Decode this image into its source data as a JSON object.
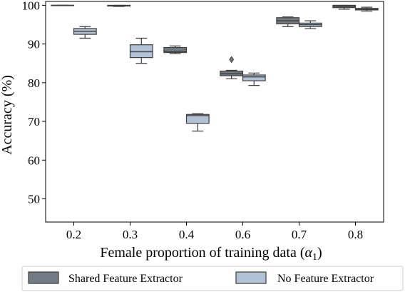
{
  "chart_data": {
    "type": "box",
    "xlabel": "Female proportion of training data (",
    "xlabel_symbol": "α",
    "xlabel_subscript": "1",
    "xlabel_close": ")",
    "ylabel": "Accuracy (%)",
    "categories": [
      "0.2",
      "0.3",
      "0.4",
      "0.6",
      "0.7",
      "0.8"
    ],
    "ylim": [
      44,
      101
    ],
    "yticks": [
      50,
      60,
      70,
      80,
      90,
      100
    ],
    "grid": false,
    "legend_position": "bottom",
    "series": [
      {
        "name": "Shared Feature Extractor",
        "color": "#737b85",
        "boxes": [
          {
            "min": 100.0,
            "q1": 100.0,
            "median": 100.0,
            "q3": 100.0,
            "max": 100.0,
            "fliers": []
          },
          {
            "min": 99.7,
            "q1": 99.8,
            "median": 99.9,
            "q3": 100.0,
            "max": 100.0,
            "fliers": []
          },
          {
            "min": 87.5,
            "q1": 87.8,
            "median": 88.1,
            "q3": 89.1,
            "max": 89.5,
            "fliers": []
          },
          {
            "min": 81.0,
            "q1": 81.8,
            "median": 82.3,
            "q3": 83.0,
            "max": 83.2,
            "fliers": [
              86.0
            ]
          },
          {
            "min": 94.5,
            "q1": 95.2,
            "median": 96.0,
            "q3": 96.8,
            "max": 97.0,
            "fliers": []
          },
          {
            "min": 99.0,
            "q1": 99.4,
            "median": 99.7,
            "q3": 100.0,
            "max": 100.0,
            "fliers": []
          }
        ]
      },
      {
        "name": "No Feature Extractor",
        "color": "#b2c2d6",
        "boxes": [
          {
            "min": 91.5,
            "q1": 92.5,
            "median": 93.3,
            "q3": 94.0,
            "max": 94.5,
            "fliers": []
          },
          {
            "min": 85.0,
            "q1": 86.5,
            "median": 88.0,
            "q3": 89.8,
            "max": 91.5,
            "fliers": []
          },
          {
            "min": 67.5,
            "q1": 69.5,
            "median": 71.5,
            "q3": 71.8,
            "max": 72.0,
            "fliers": []
          },
          {
            "min": 79.3,
            "q1": 80.5,
            "median": 81.5,
            "q3": 82.0,
            "max": 82.5,
            "fliers": []
          },
          {
            "min": 94.0,
            "q1": 94.5,
            "median": 95.0,
            "q3": 95.4,
            "max": 96.0,
            "fliers": []
          },
          {
            "min": 98.5,
            "q1": 98.8,
            "median": 99.0,
            "q3": 99.2,
            "max": 99.5,
            "fliers": []
          }
        ]
      }
    ]
  }
}
